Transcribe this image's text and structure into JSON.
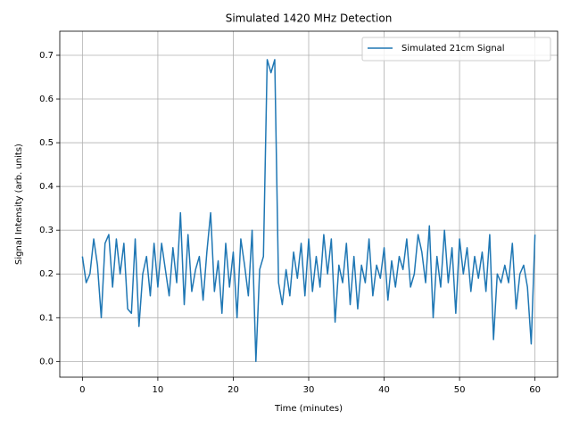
{
  "chart_data": {
    "type": "line",
    "title": "Simulated 1420 MHz Detection",
    "xlabel": "Time (minutes)",
    "ylabel": "Signal Intensity (arb. units)",
    "x": [
      0,
      0.5,
      1,
      1.5,
      2,
      2.5,
      3,
      3.5,
      4,
      4.5,
      5,
      5.5,
      6,
      6.5,
      7,
      7.5,
      8,
      8.5,
      9,
      9.5,
      10,
      10.5,
      11,
      11.5,
      12,
      12.5,
      13,
      13.5,
      14,
      14.5,
      15,
      15.5,
      16,
      16.5,
      17,
      17.5,
      18,
      18.5,
      19,
      19.5,
      20,
      20.5,
      21,
      21.5,
      22,
      22.5,
      23,
      23.5,
      24,
      24.5,
      25,
      25.5,
      26,
      26.5,
      27,
      27.5,
      28,
      28.5,
      29,
      29.5,
      30,
      30.5,
      31,
      31.5,
      32,
      32.5,
      33,
      33.5,
      34,
      34.5,
      35,
      35.5,
      36,
      36.5,
      37,
      37.5,
      38,
      38.5,
      39,
      39.5,
      40,
      40.5,
      41,
      41.5,
      42,
      42.5,
      43,
      43.5,
      44,
      44.5,
      45,
      45.5,
      46,
      46.5,
      47,
      47.5,
      48,
      48.5,
      49,
      49.5,
      50,
      50.5,
      51,
      51.5,
      52,
      52.5,
      53,
      53.5,
      54,
      54.5,
      55,
      55.5,
      56,
      56.5,
      57,
      57.5,
      58,
      58.5,
      59,
      59.5,
      60
    ],
    "series": [
      {
        "name": "Simulated 21cm Signal",
        "color": "#1f77b4",
        "values": [
          0.24,
          0.18,
          0.2,
          0.28,
          0.22,
          0.1,
          0.27,
          0.29,
          0.17,
          0.28,
          0.2,
          0.27,
          0.12,
          0.11,
          0.28,
          0.08,
          0.2,
          0.24,
          0.15,
          0.27,
          0.17,
          0.27,
          0.21,
          0.15,
          0.26,
          0.18,
          0.34,
          0.13,
          0.29,
          0.16,
          0.21,
          0.24,
          0.14,
          0.25,
          0.34,
          0.16,
          0.23,
          0.11,
          0.27,
          0.17,
          0.25,
          0.1,
          0.28,
          0.22,
          0.15,
          0.3,
          0.0,
          0.21,
          0.24,
          0.69,
          0.66,
          0.69,
          0.18,
          0.13,
          0.21,
          0.15,
          0.25,
          0.19,
          0.27,
          0.15,
          0.28,
          0.16,
          0.24,
          0.17,
          0.29,
          0.2,
          0.28,
          0.09,
          0.22,
          0.18,
          0.27,
          0.13,
          0.24,
          0.12,
          0.22,
          0.18,
          0.28,
          0.15,
          0.22,
          0.19,
          0.26,
          0.14,
          0.23,
          0.17,
          0.24,
          0.21,
          0.28,
          0.17,
          0.2,
          0.29,
          0.25,
          0.18,
          0.31,
          0.1,
          0.24,
          0.17,
          0.3,
          0.18,
          0.26,
          0.11,
          0.28,
          0.2,
          0.26,
          0.16,
          0.24,
          0.19,
          0.25,
          0.16,
          0.29,
          0.05,
          0.2,
          0.18,
          0.22,
          0.18,
          0.27,
          0.12,
          0.2,
          0.22,
          0.17,
          0.04,
          0.29
        ]
      }
    ],
    "xlim": [
      -3,
      63
    ],
    "xticks": [
      0,
      10,
      20,
      30,
      40,
      50,
      60
    ],
    "ylim": [
      -0.036,
      0.755
    ],
    "yticks": [
      {
        "value": 0,
        "label": "0.0"
      },
      0.1,
      0.2,
      0.3,
      0.4,
      0.5,
      0.6,
      0.7
    ],
    "grid": true,
    "legend": "upper-right"
  }
}
